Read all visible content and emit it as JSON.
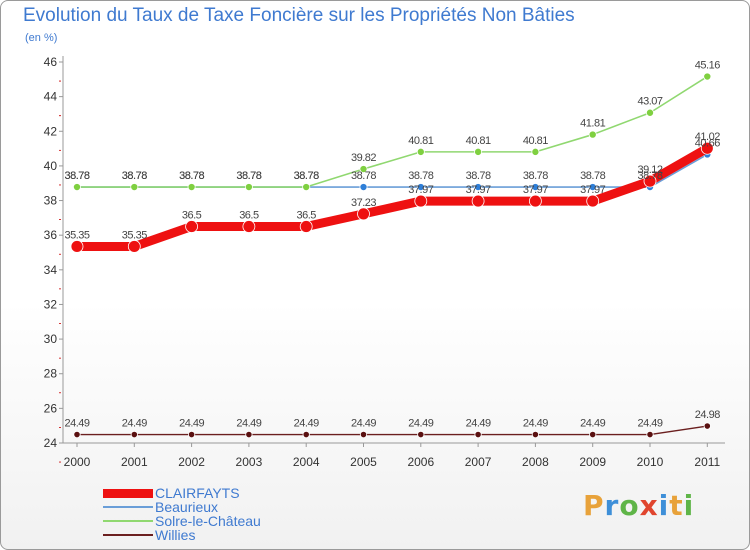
{
  "header": {
    "title": "Evolution du Taux de Taxe Foncière sur les Propriétés Non Bâties",
    "subtitle": "(en %)"
  },
  "brand": {
    "letters": [
      "P",
      "r",
      "o",
      "x",
      "i",
      "t",
      "i"
    ],
    "colors": [
      "#e8a23a",
      "#3e8fd8",
      "#5fb548",
      "#e0452e",
      "#3e8fd8",
      "#e8a23a",
      "#5fb548"
    ]
  },
  "chart_data": {
    "type": "line",
    "x": [
      "2000",
      "2001",
      "2002",
      "2003",
      "2004",
      "2005",
      "2006",
      "2007",
      "2008",
      "2009",
      "2010",
      "2011"
    ],
    "ylim": [
      24,
      46
    ],
    "yticks": [
      24,
      26,
      28,
      30,
      32,
      34,
      36,
      38,
      40,
      42,
      44,
      46
    ],
    "grid": false,
    "legend_position": "bottom-left",
    "series": [
      {
        "name": "Willies",
        "color": "#6b1f1f",
        "values": [
          24.49,
          24.49,
          24.49,
          24.49,
          24.49,
          24.49,
          24.49,
          24.49,
          24.49,
          24.49,
          24.49,
          24.98
        ],
        "labels": [
          "24.49",
          "24.49",
          "24.49",
          "24.49",
          "24.49",
          "24.49",
          "24.49",
          "24.49",
          "24.49",
          "24.49",
          "24.49",
          "24.98"
        ]
      },
      {
        "name": "Beaurieux",
        "color": "#6a9ed8",
        "values": [
          38.78,
          38.78,
          38.78,
          38.78,
          38.78,
          38.78,
          38.78,
          38.78,
          38.78,
          38.78,
          38.78,
          40.66
        ],
        "labels": [
          "38.78",
          "38.78",
          "38.78",
          "38.78",
          "38.78",
          "38.78",
          "38.78",
          "38.78",
          "38.78",
          "38.78",
          "38.78",
          "40.66"
        ]
      },
      {
        "name": "Solre-le-Château",
        "color": "#90d870",
        "values": [
          38.78,
          38.78,
          38.78,
          38.78,
          38.78,
          39.82,
          40.81,
          40.81,
          40.81,
          41.81,
          43.07,
          45.16
        ],
        "labels": [
          "38.78",
          "38.78",
          "38.78",
          "38.78",
          "38.78",
          "39.82",
          "40.81",
          "40.81",
          "40.81",
          "41.81",
          "43.07",
          "45.16"
        ]
      },
      {
        "name": "CLAIRFAYTS",
        "color": "#ee1111",
        "values": [
          35.35,
          35.35,
          36.5,
          36.5,
          36.5,
          37.23,
          37.97,
          37.97,
          37.97,
          37.97,
          39.12,
          41.02
        ],
        "labels": [
          "35.35",
          "35.35",
          "36.5",
          "36.5",
          "36.5",
          "37.23",
          "37.97",
          "37.97",
          "37.97",
          "37.97",
          "39.12",
          "41.02"
        ]
      }
    ],
    "legend_order": [
      "CLAIRFAYTS",
      "Beaurieux",
      "Solre-le-Château",
      "Willies"
    ]
  }
}
